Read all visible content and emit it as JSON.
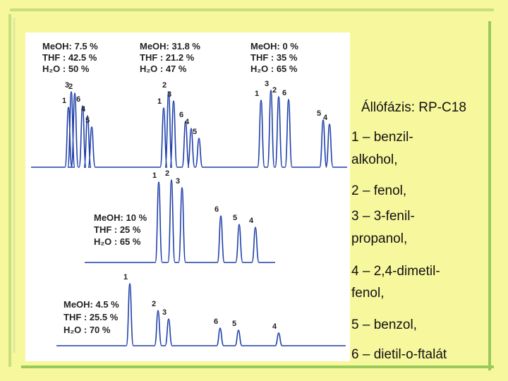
{
  "chromatograms": [
    {
      "composition": [
        "MeOH: 7.5 %",
        "THF   : 42.5 %",
        "H₂O   : 50 %"
      ],
      "peaks": [
        "1",
        "3",
        "2",
        "6",
        "4",
        "5"
      ]
    },
    {
      "composition": [
        "MeOH: 31.8 %",
        "THF   : 21.2 %",
        "H₂O   : 47 %"
      ],
      "peaks": [
        "1",
        "2",
        "3",
        "6",
        "4",
        "5"
      ]
    },
    {
      "composition": [
        "MeOH: 0 %",
        "THF   : 35 %",
        "H₂O   : 65 %"
      ],
      "peaks": [
        "1",
        "3",
        "2",
        "6",
        "5",
        "4"
      ]
    },
    {
      "composition": [
        "MeOH: 10 %",
        "THF   : 25 %",
        "H₂O   : 65 %"
      ],
      "peaks": [
        "1",
        "2",
        "3",
        "6",
        "5",
        "4"
      ]
    },
    {
      "composition": [
        "MeOH: 4.5 %",
        "THF   : 25.5 %",
        "H₂O   : 70 %"
      ],
      "peaks": [
        "1",
        "2",
        "3",
        "6",
        "5",
        "4"
      ]
    }
  ],
  "legend": {
    "stationary_phase": "Állófázis: RP-C18",
    "items": [
      [
        "1 – benzil-",
        "alkohol,"
      ],
      [
        "2 – fenol,"
      ],
      [
        "3 – 3-fenil-",
        "propanol,"
      ],
      [
        "4 – 2,4-dimetil-",
        "fenol,"
      ],
      [
        "5 – benzol,"
      ],
      [
        "6 – dietil-o-ftalát"
      ]
    ]
  }
}
